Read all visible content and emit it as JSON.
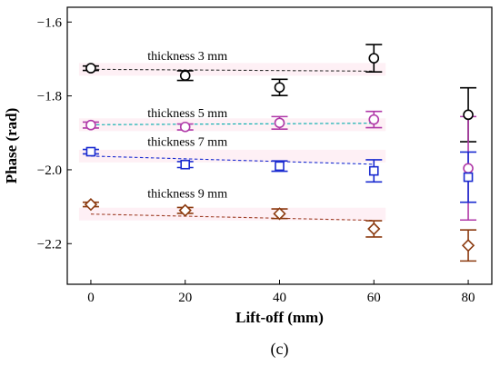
{
  "chart_data": {
    "type": "scatter",
    "title": "",
    "xlabel": "Lift-off (mm)",
    "ylabel": "Phase (rad)",
    "panel_label": "(c)",
    "xlim": [
      -5,
      85
    ],
    "ylim": [
      -2.31,
      -1.56
    ],
    "x_ticks": [
      0,
      20,
      40,
      60,
      80
    ],
    "y_ticks": [
      -1.6,
      -1.8,
      -2.0,
      -2.2
    ],
    "y_tick_labels": [
      "−1.6",
      "−1.8",
      "−2.0",
      "−2.2"
    ],
    "error_bars": true,
    "trend_lines": "dashed linear fit per series (x 0 to 60)",
    "series": [
      {
        "label": "thickness 3 mm",
        "marker": "circle",
        "color": "#000000",
        "line_color": "#333333",
        "x": [
          0,
          20,
          40,
          60,
          80
        ],
        "y": [
          -1.725,
          -1.745,
          -1.777,
          -1.698,
          -1.851
        ],
        "err": [
          0.006,
          0.013,
          0.022,
          0.037,
          0.073
        ],
        "fit": [
          -1.728,
          -1.733
        ]
      },
      {
        "label": "thickness 5 mm",
        "marker": "circle",
        "color": "#b03aa8",
        "line_color": "#00aaaa",
        "x": [
          0,
          20,
          40,
          60,
          80
        ],
        "y": [
          -1.879,
          -1.884,
          -1.873,
          -1.864,
          -1.996
        ],
        "err": [
          0.008,
          0.008,
          0.017,
          0.022,
          0.14
        ],
        "fit": [
          -1.878,
          -1.874
        ]
      },
      {
        "label": "thickness 7 mm",
        "marker": "square",
        "color": "#1a2bd0",
        "line_color": "#1a2bd0",
        "x": [
          0,
          20,
          40,
          60,
          80
        ],
        "y": [
          -1.951,
          -1.986,
          -1.99,
          -2.003,
          -2.02
        ],
        "err": [
          0.006,
          0.008,
          0.014,
          0.03,
          0.068
        ],
        "fit": [
          -1.963,
          -1.985
        ]
      },
      {
        "label": "thickness 9 mm",
        "marker": "diamond",
        "color": "#8b3a0f",
        "line_color": "#a0402a",
        "x": [
          0,
          20,
          40,
          60,
          80
        ],
        "y": [
          -2.094,
          -2.11,
          -2.119,
          -2.16,
          -2.205
        ],
        "err": [
          0.006,
          0.008,
          0.013,
          0.022,
          0.042
        ],
        "fit": [
          -2.12,
          -2.137
        ]
      }
    ],
    "label_positions": [
      {
        "x": 12,
        "y": -1.703
      },
      {
        "x": 12,
        "y": -1.858
      },
      {
        "x": 12,
        "y": -1.935
      },
      {
        "x": 12,
        "y": -2.075
      }
    ]
  }
}
